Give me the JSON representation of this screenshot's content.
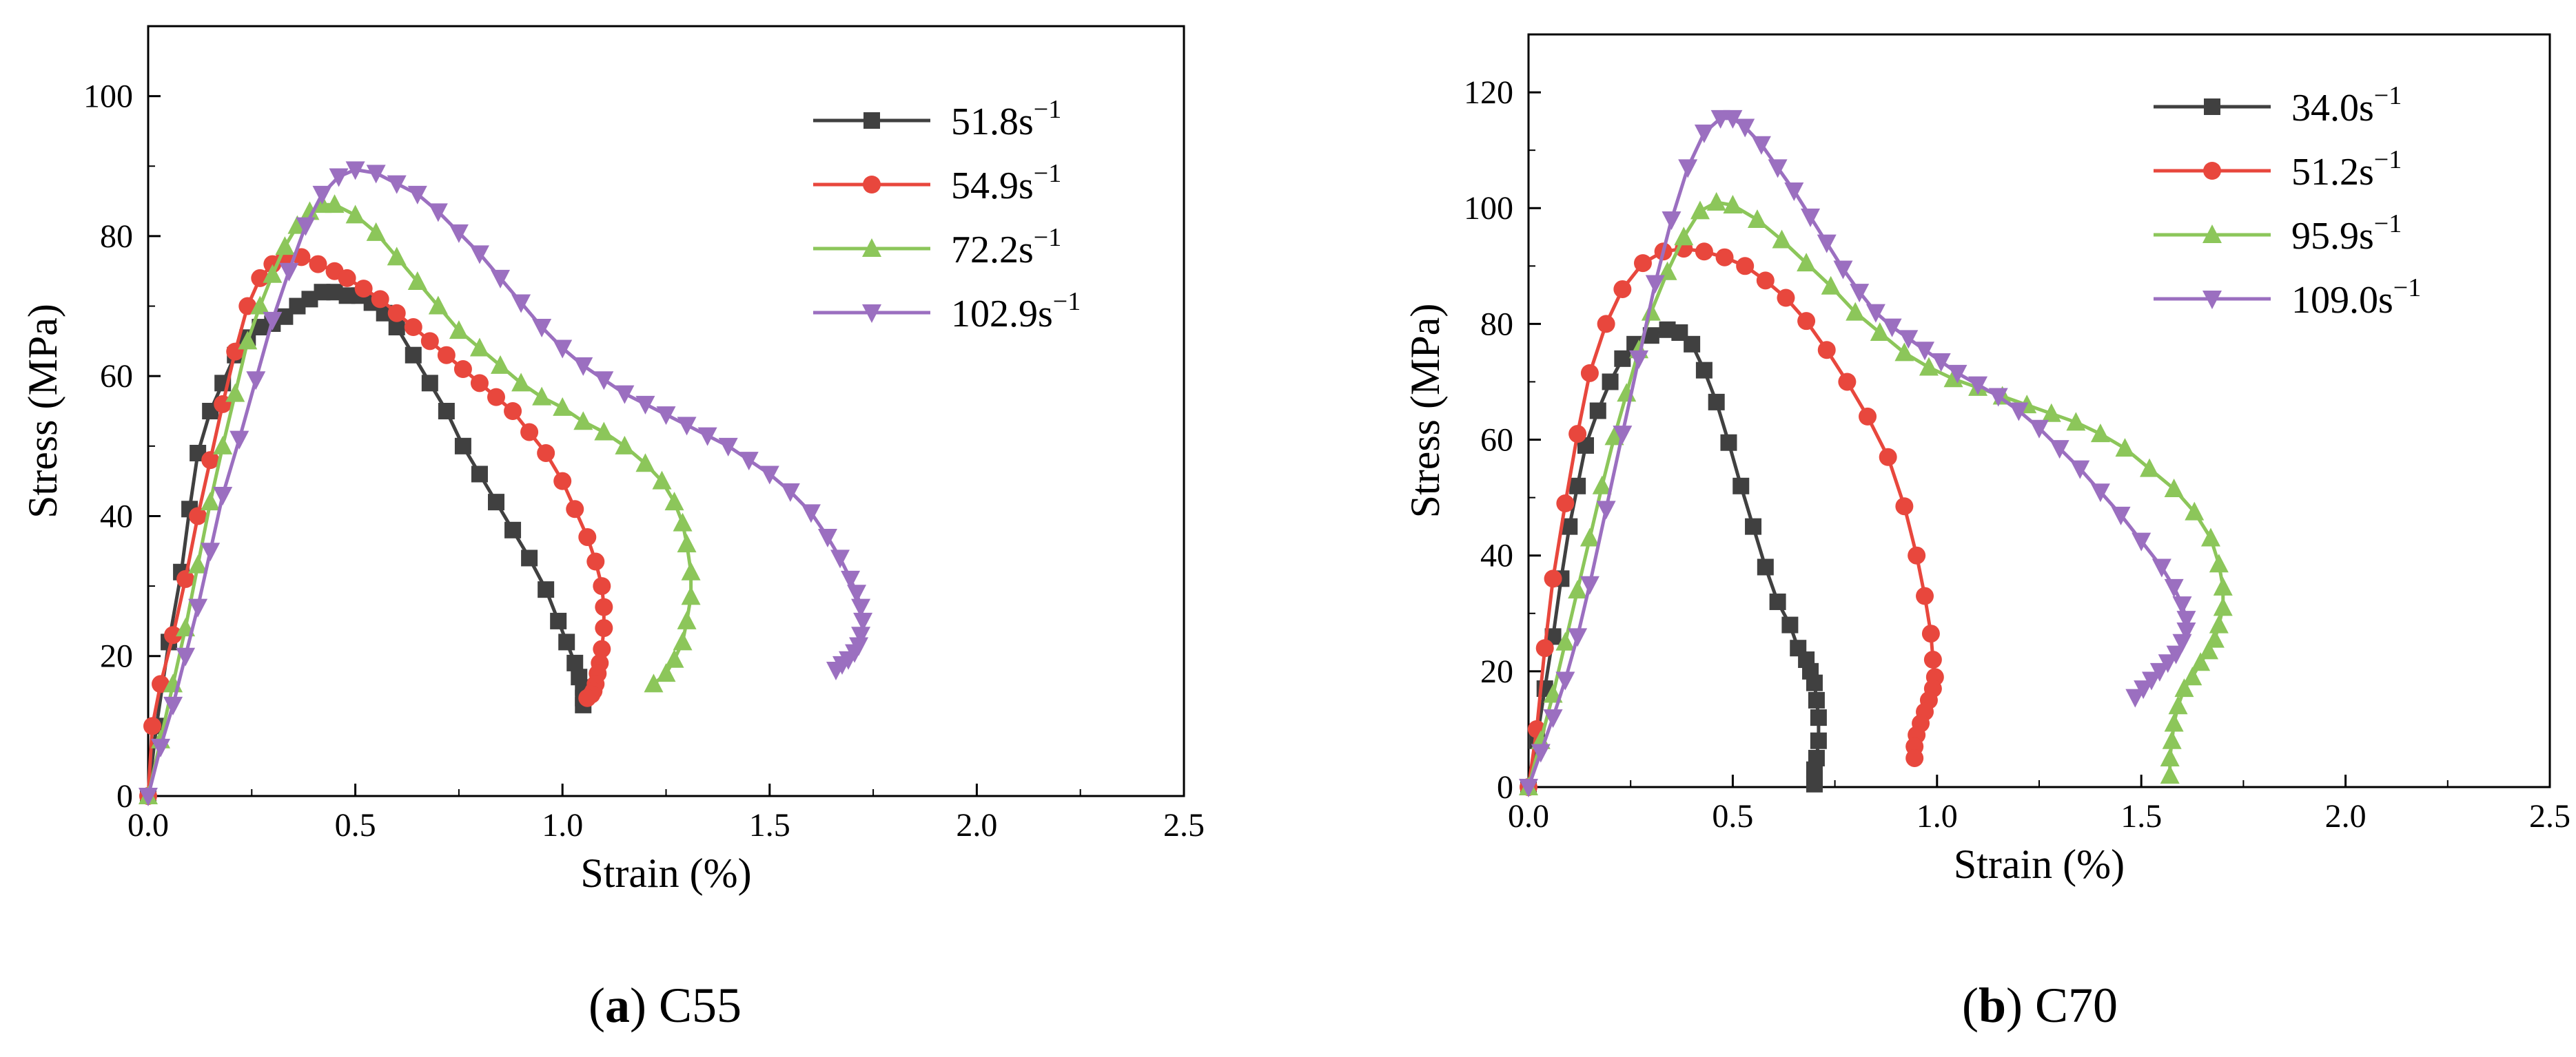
{
  "chart_data": [
    {
      "type": "line",
      "caption_letter": "a",
      "caption_text": "C55",
      "xlabel": "Strain (%)",
      "ylabel": "Stress (MPa)",
      "xlim": [
        0,
        2.5
      ],
      "ylim": [
        0,
        110
      ],
      "xticks": [
        "0.0",
        "0.5",
        "1.0",
        "1.5",
        "2.0",
        "2.5"
      ],
      "yticks": [
        "0",
        "20",
        "40",
        "60",
        "80",
        "100"
      ],
      "legend_position": "top-right",
      "grid": false,
      "series": [
        {
          "name": "51.8s",
          "superscript": "−1",
          "color": "#404040",
          "marker": "square",
          "x": [
            0.0,
            0.02,
            0.05,
            0.08,
            0.1,
            0.12,
            0.15,
            0.18,
            0.21,
            0.24,
            0.27,
            0.3,
            0.33,
            0.36,
            0.39,
            0.42,
            0.45,
            0.48,
            0.51,
            0.54,
            0.57,
            0.6,
            0.64,
            0.68,
            0.72,
            0.76,
            0.8,
            0.84,
            0.88,
            0.92,
            0.96,
            0.99,
            1.01,
            1.03,
            1.04,
            1.05,
            1.05,
            1.05
          ],
          "y": [
            0,
            10,
            22,
            32,
            41,
            49,
            55,
            59,
            63,
            65.5,
            67,
            67.5,
            68.5,
            70,
            71,
            72,
            72,
            71.5,
            71.5,
            70.5,
            69,
            67,
            63,
            59,
            55,
            50,
            46,
            42,
            38,
            34,
            29.5,
            25,
            22,
            19,
            17,
            15.5,
            14,
            13
          ]
        },
        {
          "name": "54.9s",
          "superscript": "−1",
          "color": "#e8473d",
          "marker": "circle",
          "x": [
            0.0,
            0.01,
            0.03,
            0.06,
            0.09,
            0.12,
            0.15,
            0.18,
            0.21,
            0.24,
            0.27,
            0.3,
            0.33,
            0.37,
            0.41,
            0.45,
            0.48,
            0.52,
            0.56,
            0.6,
            0.64,
            0.68,
            0.72,
            0.76,
            0.8,
            0.84,
            0.88,
            0.92,
            0.96,
            1.0,
            1.03,
            1.06,
            1.08,
            1.095,
            1.1,
            1.1,
            1.095,
            1.09,
            1.085,
            1.08,
            1.075,
            1.07,
            1.06
          ],
          "y": [
            0,
            10,
            16,
            23,
            31,
            40,
            48,
            56,
            63.5,
            70,
            74,
            76,
            77,
            77,
            76,
            75,
            74,
            72.5,
            71,
            69,
            67,
            65,
            63,
            61,
            59,
            57,
            55,
            52,
            49,
            45,
            41,
            37,
            33.5,
            30,
            27,
            24,
            21,
            19,
            17.5,
            16,
            15,
            14.5,
            14
          ]
        },
        {
          "name": "72.2s",
          "superscript": "−1",
          "color": "#8cc65a",
          "marker": "triangle-up",
          "x": [
            0.0,
            0.03,
            0.06,
            0.09,
            0.12,
            0.15,
            0.18,
            0.21,
            0.24,
            0.27,
            0.3,
            0.33,
            0.36,
            0.39,
            0.42,
            0.45,
            0.5,
            0.55,
            0.6,
            0.65,
            0.7,
            0.75,
            0.8,
            0.85,
            0.9,
            0.95,
            1.0,
            1.05,
            1.1,
            1.15,
            1.2,
            1.24,
            1.27,
            1.29,
            1.3,
            1.31,
            1.31,
            1.3,
            1.29,
            1.27,
            1.25,
            1.22
          ],
          "y": [
            0,
            8,
            16,
            24,
            33,
            42,
            50,
            57.5,
            65,
            70,
            74.5,
            78.5,
            81.5,
            83.5,
            84.5,
            84.5,
            83,
            80.5,
            77,
            73.5,
            70,
            66.5,
            64,
            61.5,
            59,
            57,
            55.5,
            53.5,
            52,
            50,
            47.5,
            45,
            42,
            39,
            36,
            32,
            28.5,
            25,
            22,
            19.5,
            17.5,
            16
          ]
        },
        {
          "name": "102.9s",
          "superscript": "−1",
          "color": "#9b6fc0",
          "marker": "triangle-down",
          "x": [
            0.0,
            0.03,
            0.06,
            0.09,
            0.12,
            0.15,
            0.18,
            0.22,
            0.26,
            0.3,
            0.34,
            0.38,
            0.42,
            0.46,
            0.5,
            0.55,
            0.6,
            0.65,
            0.7,
            0.75,
            0.8,
            0.85,
            0.9,
            0.95,
            1.0,
            1.05,
            1.1,
            1.15,
            1.2,
            1.25,
            1.3,
            1.35,
            1.4,
            1.45,
            1.5,
            1.55,
            1.6,
            1.64,
            1.67,
            1.695,
            1.71,
            1.72,
            1.725,
            1.72,
            1.715,
            1.705,
            1.69,
            1.675,
            1.66
          ],
          "y": [
            0,
            7,
            13,
            20,
            27,
            35,
            43,
            51,
            59.5,
            68,
            75,
            81.5,
            86,
            88.5,
            89.5,
            89,
            87.5,
            86,
            83.5,
            80.5,
            77.5,
            74,
            70.5,
            67,
            64,
            61.5,
            59.5,
            57.5,
            56,
            54.5,
            53,
            51.5,
            50,
            48,
            46,
            43.5,
            40.5,
            37,
            34,
            31,
            29,
            27,
            25,
            23,
            21.5,
            20.5,
            19.5,
            18.8,
            18
          ]
        }
      ]
    },
    {
      "type": "line",
      "caption_letter": "b",
      "caption_text": "C70",
      "xlabel": "Strain (%)",
      "ylabel": "Stress (MPa)",
      "xlim": [
        0,
        2.5
      ],
      "ylim": [
        0,
        130
      ],
      "xticks": [
        "0.0",
        "0.5",
        "1.0",
        "1.5",
        "2.0",
        "2.5"
      ],
      "yticks": [
        "0",
        "20",
        "40",
        "60",
        "80",
        "100",
        "120"
      ],
      "legend_position": "top-right",
      "grid": false,
      "series": [
        {
          "name": "34.0s",
          "superscript": "−1",
          "color": "#404040",
          "marker": "square",
          "x": [
            0.0,
            0.02,
            0.04,
            0.06,
            0.08,
            0.1,
            0.12,
            0.14,
            0.17,
            0.2,
            0.23,
            0.26,
            0.3,
            0.34,
            0.37,
            0.4,
            0.43,
            0.46,
            0.49,
            0.52,
            0.55,
            0.58,
            0.61,
            0.64,
            0.66,
            0.68,
            0.69,
            0.7,
            0.705,
            0.71,
            0.71,
            0.705,
            0.7,
            0.7,
            0.7
          ],
          "y": [
            0,
            8,
            17,
            26,
            36,
            45,
            52,
            59,
            65,
            70,
            74,
            76.5,
            78,
            79,
            78.5,
            76.5,
            72,
            66.5,
            59.5,
            52,
            45,
            38,
            32,
            28,
            24,
            22,
            20,
            18,
            15,
            12,
            8,
            5,
            3,
            1.5,
            0.5
          ]
        },
        {
          "name": "51.2s",
          "superscript": "−1",
          "color": "#e8473d",
          "marker": "circle",
          "x": [
            0.0,
            0.02,
            0.04,
            0.06,
            0.09,
            0.12,
            0.15,
            0.19,
            0.23,
            0.28,
            0.33,
            0.38,
            0.43,
            0.48,
            0.53,
            0.58,
            0.63,
            0.68,
            0.73,
            0.78,
            0.83,
            0.88,
            0.92,
            0.95,
            0.97,
            0.985,
            0.99,
            0.995,
            0.99,
            0.98,
            0.97,
            0.96,
            0.95,
            0.945,
            0.945
          ],
          "y": [
            0,
            10,
            24,
            36,
            49,
            61,
            71.5,
            80,
            86,
            90.5,
            92.5,
            93,
            92.5,
            91.5,
            90,
            87.5,
            84.5,
            80.5,
            75.5,
            70,
            64,
            57,
            48.5,
            40,
            33,
            26.5,
            22,
            19,
            17,
            15,
            13,
            11,
            9,
            7,
            5
          ]
        },
        {
          "name": "95.9s",
          "superscript": "−1",
          "color": "#8cc65a",
          "marker": "triangle-up",
          "x": [
            0.0,
            0.03,
            0.06,
            0.09,
            0.12,
            0.15,
            0.18,
            0.21,
            0.24,
            0.27,
            0.3,
            0.34,
            0.38,
            0.42,
            0.46,
            0.5,
            0.56,
            0.62,
            0.68,
            0.74,
            0.8,
            0.86,
            0.92,
            0.98,
            1.04,
            1.1,
            1.16,
            1.22,
            1.28,
            1.34,
            1.4,
            1.46,
            1.52,
            1.58,
            1.63,
            1.67,
            1.69,
            1.7,
            1.7,
            1.69,
            1.68,
            1.665,
            1.645,
            1.625,
            1.605,
            1.59,
            1.58,
            1.575,
            1.57,
            1.57
          ],
          "y": [
            0,
            8,
            16,
            25,
            34,
            43,
            52,
            60.5,
            68,
            75.5,
            82,
            89,
            95,
            99.5,
            101,
            100.5,
            98,
            94.5,
            90.5,
            86.5,
            82,
            78.5,
            75,
            72.5,
            70.5,
            69,
            67.5,
            66,
            64.5,
            63,
            61,
            58.5,
            55,
            51.5,
            47.5,
            43,
            38.5,
            34.5,
            31,
            28,
            25.5,
            23.5,
            21.5,
            19,
            17,
            14,
            11,
            8,
            5,
            2
          ]
        },
        {
          "name": "109.0s",
          "superscript": "−1",
          "color": "#9b6fc0",
          "marker": "triangle-down",
          "x": [
            0.0,
            0.03,
            0.06,
            0.09,
            0.12,
            0.15,
            0.19,
            0.23,
            0.27,
            0.31,
            0.35,
            0.39,
            0.43,
            0.47,
            0.5,
            0.53,
            0.57,
            0.61,
            0.65,
            0.69,
            0.73,
            0.77,
            0.81,
            0.85,
            0.89,
            0.93,
            0.97,
            1.01,
            1.05,
            1.1,
            1.15,
            1.2,
            1.25,
            1.3,
            1.35,
            1.4,
            1.45,
            1.5,
            1.55,
            1.58,
            1.6,
            1.61,
            1.61,
            1.6,
            1.585,
            1.565,
            1.545,
            1.525,
            1.505,
            1.485
          ],
          "y": [
            0,
            6,
            12,
            18.5,
            26,
            35,
            48,
            61,
            74,
            87,
            98,
            107,
            113,
            115.5,
            115.5,
            114,
            111,
            107,
            103,
            98.5,
            94,
            89.5,
            85.5,
            82,
            79.5,
            77.5,
            75.5,
            73.5,
            71.5,
            69.5,
            67.5,
            65,
            62,
            58.5,
            55,
            51,
            47,
            42.5,
            38,
            34.5,
            31.5,
            29,
            27,
            25,
            23,
            21.5,
            20,
            18.5,
            17,
            15.5
          ]
        }
      ]
    }
  ]
}
